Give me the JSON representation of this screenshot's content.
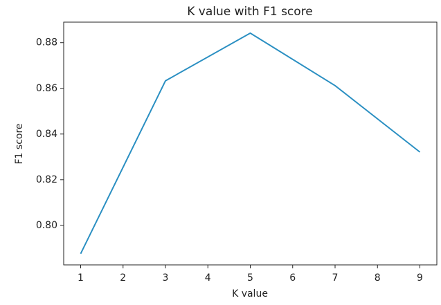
{
  "chart_data": {
    "type": "line",
    "title": "K value with F1 score",
    "x_label": "K value",
    "y_label": "F1 score",
    "x": [
      1,
      3,
      5,
      7,
      9
    ],
    "series": [
      {
        "name": "F1 score",
        "color": "#2a8fc2",
        "values": [
          0.7876,
          0.8633,
          0.8842,
          0.8612,
          0.8321
        ]
      }
    ],
    "xlim": [
      0.6,
      9.4
    ],
    "xticks": [
      1,
      2,
      3,
      4,
      5,
      6,
      7,
      8,
      9
    ],
    "ylim": [
      0.7827,
      0.889
    ],
    "yticks": [
      {
        "value": 0.8,
        "label": "0.80"
      },
      {
        "value": 0.82,
        "label": "0.82"
      },
      {
        "value": 0.84,
        "label": "0.84"
      },
      {
        "value": 0.86,
        "label": "0.86"
      },
      {
        "value": 0.88,
        "label": "0.88"
      }
    ],
    "grid": false
  }
}
